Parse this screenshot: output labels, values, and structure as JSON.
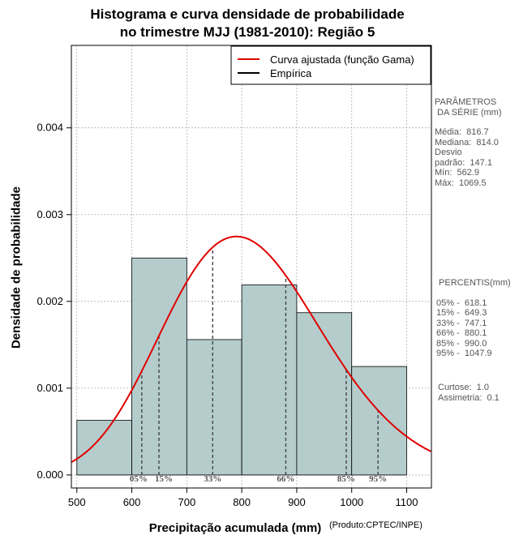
{
  "chart_data": {
    "type": "bar",
    "title_line1": "Histograma e curva densidade de probabilidade",
    "title_line2": "no trimestre MJJ (1981-2010): Região 5",
    "xlabel": "Precipitação acumulada (mm)",
    "ylabel": "Densidade de probabilidade",
    "source_note": "(Produto:CPTEC/INPE)",
    "xlim": [
      490,
      1145
    ],
    "ylim": [
      -0.00015,
      0.00495
    ],
    "x_ticks": [
      500,
      600,
      700,
      800,
      900,
      1000,
      1100
    ],
    "y_ticks": [
      0.0,
      0.001,
      0.002,
      0.003,
      0.004
    ],
    "y_tick_labels": [
      "0.000",
      "0.001",
      "0.002",
      "0.003",
      "0.004"
    ],
    "bins": [
      {
        "from": 500,
        "to": 600,
        "density": 0.00063
      },
      {
        "from": 600,
        "to": 700,
        "density": 0.0025
      },
      {
        "from": 700,
        "to": 800,
        "density": 0.00156
      },
      {
        "from": 800,
        "to": 900,
        "density": 0.00219
      },
      {
        "from": 900,
        "to": 1000,
        "density": 0.00187
      },
      {
        "from": 1000,
        "to": 1100,
        "density": 0.00125
      }
    ],
    "fitted_curve": {
      "name": "Curva ajustada (função Gama)",
      "shape": 30.8,
      "scale": 26.52,
      "color": "#e00000"
    },
    "legend": [
      {
        "label": "Curva ajustada (função Gama)",
        "color": "#e00000"
      },
      {
        "label": "Empírica",
        "color": "#000000"
      }
    ],
    "percentile_markers": [
      {
        "label": "05%",
        "x": 618.1
      },
      {
        "label": "15%",
        "x": 649.3
      },
      {
        "label": "33%",
        "x": 747.1
      },
      {
        "label": "66%",
        "x": 880.1
      },
      {
        "label": "85%",
        "x": 990.0
      },
      {
        "label": "95%",
        "x": 1047.9
      }
    ],
    "grid": true,
    "bar_color": "#b4cccc"
  },
  "parameters": {
    "heading1": "PARÂMETROS",
    "heading2": " DA SÉRIE (mm)",
    "lines": [
      "Média:  816.7",
      "Mediana:  814.0",
      "Desvio",
      "padrão:  147.1",
      "Mín:  562.9",
      "Máx:  1069.5"
    ]
  },
  "percentiles": {
    "heading": " PERCENTIS(mm)",
    "lines": [
      "05% -  618.1",
      "15% -  649.3",
      "33% -  747.1",
      "66% -  880.1",
      "85% -  990.0",
      "95% -  1047.9"
    ]
  },
  "shape_stats": {
    "lines": [
      "Curtose:  1.0",
      "Assimetria:  0.1"
    ]
  }
}
